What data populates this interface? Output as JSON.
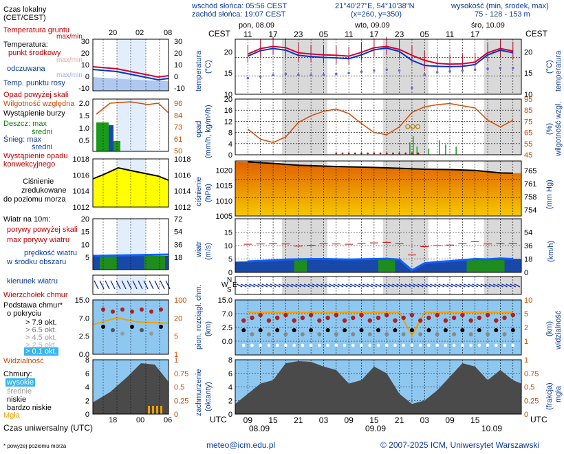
{
  "header": {
    "sunrise": "wschód słońca: 05:56 CEST",
    "sunset": "zachód słońca: 19:07 CEST",
    "coords": "21°40'27\"E, 54°10'38\"N",
    "grid": "(x=260, y=350)",
    "elevation_label": "wysokość (min, środek, max)",
    "elevation_values": "75 - 128 - 153 m",
    "tz_left": "CEST",
    "tz_right": "CEST",
    "day_labels": [
      "pon, 08.09",
      "wto, 09.09",
      "śro, 10.09"
    ],
    "hour_ticks_top": [
      "11",
      "17",
      "23",
      "05",
      "11",
      "17",
      "23",
      "05",
      "11",
      "17"
    ]
  },
  "legend": {
    "local_time": "Czas lokalny",
    "local_time_sub": "(CET/CEST)",
    "local_hours": [
      "20",
      "02",
      "08"
    ],
    "soil_temp": "Temperatura gruntu",
    "soil_temp_sub": "max/min",
    "temperature": "Temperatura:",
    "mid_point": "punkt środkowy",
    "max_min": "max/min",
    "felt": "odczuwana",
    "felt_sub": "max/min",
    "dew_point": "Temp. punktu rosy",
    "precip_above": "Opad powyżej skali",
    "humidity": "Wilgotność względna",
    "storm": "Wystąpienie burzy",
    "rain_max": "Deszcz: max",
    "rain_mid": "średni",
    "snow_max": "Śnieg:   max",
    "snow_mid": "średni",
    "conv": "Wystąpienie opadu",
    "conv2": "konwekcyjnego",
    "pressure": "Ciśnienie",
    "pressure2": "zredukowane",
    "pressure3": "do poziomu morza",
    "wind10": "Wiatr na 10m:",
    "gusts_above": "porywy powyżej skali",
    "gusts_max": "max porywy wiatru",
    "wind_speed": "prędkość wiatru",
    "wind_speed2": "w środku obszaru",
    "wind_dir": "kierunek wiatru",
    "cloud_top": "Wierzchołek chmur",
    "cloud_base": "Podstawa chmur*",
    "cloud_base2": "o pokryciu",
    "okt": [
      "> 7.9 okt.",
      "> 6.5 okt.",
      "> 4.5 okt.",
      "> 2.5 okt.",
      "> 0.1 okt."
    ],
    "visibility": "Widzialność",
    "clouds": "Chmury:",
    "high": "wysokie",
    "medium": "średnie",
    "low": "niskie",
    "very_low": "bardzo niskie",
    "fog": "Mgła",
    "utc_label": "Czas uniwersalny (UTC)",
    "utc_hours": [
      "18",
      "00",
      "06"
    ],
    "footnote": "* powyżej poziomu morza"
  },
  "axes": {
    "temp_title": "temperatura",
    "temp_unit": "(°C)",
    "precip_title": "opad",
    "precip_unit": "(mm/h, kg/m²/h)",
    "humidity_title": "wilgotność wzgl.",
    "humidity_unit": "(%)",
    "pressure_title": "ciśnienie",
    "pressure_unit": "(hPa)",
    "pressure_mm": "(mm Hg)",
    "wind_title": "wiatr",
    "wind_unit": "(m/s)",
    "wind_kmh": "(km/h)",
    "cloud_title": "pion. rozciągł. chm.",
    "cloud_unit": "(km)",
    "vis_title": "widzialność",
    "vis_unit": "(km)",
    "cover_title": "zachmurzenie",
    "cover_unit": "(oktanty)",
    "fog_title": "mgła",
    "fog_unit": "(frakcja)",
    "utc_left": "UTC",
    "utc_right": "UTC",
    "hour_ticks_bottom": [
      "09",
      "15",
      "21",
      "03",
      "09",
      "15",
      "21",
      "03",
      "09",
      "15"
    ],
    "date_ticks_bottom": [
      "08.09",
      "09.09",
      "10.09"
    ],
    "temp_ticks": [
      "20",
      "15",
      "10"
    ],
    "precip_ticks": [
      "20",
      "16",
      "12",
      "8",
      "4",
      "0"
    ],
    "hum_ticks": [
      "95",
      "85",
      "75",
      "65",
      "55",
      "45"
    ],
    "pres_ticks": [
      "1020",
      "1015",
      "1010",
      "1005"
    ],
    "mmhg_ticks": [
      "765",
      "761",
      "758",
      "754"
    ],
    "wind_ticks": [
      "15",
      "10",
      "5",
      "0"
    ],
    "kmh_ticks": [
      "54",
      "36",
      "18",
      "0"
    ],
    "cloud_ticks": [
      "15.0",
      "7.0",
      "2.5",
      "0.0"
    ],
    "vis_ticks": [
      "10",
      "5",
      "2",
      "1"
    ],
    "cover_ticks": [
      "8",
      "6",
      "4",
      "2",
      "0"
    ],
    "frac_ticks": [
      "1",
      "0.75",
      "0.5",
      "0.25",
      "0"
    ]
  },
  "legend_ticks": {
    "temp_left": [
      "30",
      "20",
      "10",
      "0",
      "-10"
    ],
    "temp_right": [
      "30",
      "20",
      "10",
      "0",
      "-10"
    ],
    "precip_left": [
      "2.0",
      "1.5",
      "1.0",
      "0.5"
    ],
    "hum_right": [
      "96",
      "84",
      "73",
      "61",
      "50"
    ],
    "pres_left": [
      "1018",
      "1016",
      "1014",
      "1012"
    ],
    "pres_right": [
      "1018",
      "1016",
      "1014",
      "1012"
    ],
    "wind_left": [
      "20",
      "15",
      "10",
      "5"
    ],
    "wind_right": [
      "72",
      "54",
      "36",
      "18"
    ],
    "cloud_left": [
      "15.0",
      "7.0",
      "2.5",
      "0.0"
    ],
    "cloud_right": [
      "100",
      "20",
      "5",
      "1"
    ],
    "cover_left": [
      "8",
      "6",
      "4",
      "2",
      "0"
    ],
    "cover_right": [
      "1",
      "0.75",
      "0.5",
      "0.25",
      "0"
    ]
  },
  "footer": {
    "email": "meteo@icm.edu.pl",
    "copyright": "© 2007-2025 ICM, Uniwersytet Warszawski"
  },
  "colors": {
    "temp": "#d0002a",
    "felt": "#0033cc",
    "dew": "#6a6ad8",
    "humidity": "#d84a00",
    "pressure_fill": "#f3a000",
    "wind_green": "#1e8c1e",
    "wind_blue": "#1060ff",
    "cloud_bg": "#8ec8f0",
    "night_band": "#d9d9d9"
  },
  "chart_data": [
    {
      "type": "line",
      "title": "temperatura",
      "ylabel": "(°C)",
      "ylim": [
        10,
        23
      ],
      "x_hours_utc": [
        9,
        12,
        15,
        18,
        21,
        24,
        27,
        30,
        33,
        36,
        39,
        42,
        45,
        48,
        51,
        54,
        57,
        60,
        63,
        66,
        69,
        72
      ],
      "series": [
        {
          "name": "punkt środkowy",
          "values": [
            19.5,
            20.8,
            21.3,
            21.0,
            19.8,
            19.5,
            19.3,
            19.2,
            19.0,
            19.9,
            21.0,
            21.3,
            20.6,
            19.2,
            18.0,
            17.3,
            17.1,
            17.2,
            17.6,
            19.8,
            20.8,
            20.2
          ]
        },
        {
          "name": "odczuwana",
          "values": [
            19.0,
            20.3,
            20.8,
            20.4,
            19.2,
            18.9,
            18.7,
            18.6,
            18.4,
            19.3,
            20.5,
            20.9,
            20.1,
            18.0,
            16.8,
            16.6,
            16.5,
            16.6,
            17.0,
            19.3,
            20.4,
            19.8
          ]
        },
        {
          "name": "Temp. punktu rosy",
          "values": [
            13.8,
            14.2,
            14.5,
            14.8,
            14.6,
            14.5,
            14.6,
            14.8,
            15.0,
            15.3,
            15.6,
            15.8,
            15.6,
            11.5,
            14.6,
            15.2,
            15.4,
            15.6,
            15.8,
            16.0,
            16.2,
            16.2
          ]
        }
      ]
    },
    {
      "type": "line",
      "title": "wilgotność wzgl.",
      "ylabel": "(%)",
      "ylim": [
        45,
        95
      ],
      "x_hours_utc": [
        9,
        12,
        15,
        18,
        21,
        24,
        27,
        30,
        33,
        36,
        39,
        42,
        45,
        48,
        51,
        54,
        57,
        60,
        63,
        66,
        69,
        72
      ],
      "series": [
        {
          "name": "Wilgotność względna",
          "values": [
            68,
            59,
            56,
            61,
            74,
            80,
            84,
            86,
            82,
            73,
            65,
            63,
            70,
            83,
            88,
            90,
            91,
            89,
            87,
            76,
            70,
            76
          ]
        }
      ]
    },
    {
      "type": "area",
      "title": "ciśnienie",
      "ylabel": "(hPa)",
      "ylim": [
        1005,
        1023
      ],
      "x_hours_utc": [
        9,
        15,
        21,
        27,
        33,
        39,
        45,
        51,
        57,
        63,
        69,
        72
      ],
      "series": [
        {
          "name": "Ciśnienie",
          "values": [
            1022.7,
            1022.2,
            1021.6,
            1021.3,
            1021.1,
            1020.9,
            1020.6,
            1020.3,
            1020.2,
            1019.9,
            1019.1,
            1019.0
          ]
        }
      ]
    },
    {
      "type": "line",
      "title": "wiatr",
      "ylabel": "(m/s)",
      "ylim": [
        0,
        20
      ],
      "x_hours_utc": [
        9,
        12,
        15,
        18,
        21,
        24,
        27,
        30,
        33,
        36,
        39,
        42,
        45,
        48,
        51,
        54,
        57,
        60,
        63,
        66,
        69,
        72
      ],
      "series": [
        {
          "name": "max porywy wiatru",
          "values": [
            10.5,
            10.6,
            10.8,
            10.6,
            9.8,
            10.1,
            10.7,
            10.6,
            10.5,
            10.8,
            11.0,
            11.2,
            10.8,
            6.5,
            9.6,
            10.0,
            10.2,
            10.8,
            11.4,
            10.6,
            10.9,
            10.8
          ]
        },
        {
          "name": "prędkość wiatru",
          "values": [
            4.1,
            4.3,
            4.5,
            4.8,
            4.9,
            5.0,
            5.0,
            4.9,
            4.8,
            4.9,
            5.0,
            5.1,
            4.8,
            0.8,
            3.4,
            3.9,
            4.2,
            4.6,
            5.0,
            4.9,
            5.2,
            5.0
          ]
        }
      ]
    },
    {
      "type": "line",
      "title": "widzialność",
      "ylabel": "(km)",
      "x_hours_utc": [
        9,
        15,
        21,
        27,
        33,
        39,
        45,
        48,
        51,
        57,
        63,
        69,
        72
      ],
      "series": [
        {
          "name": "Widzialność",
          "values": [
            20,
            20,
            20,
            20,
            20,
            20,
            20,
            2,
            20,
            20,
            20,
            20,
            20
          ]
        }
      ]
    }
  ]
}
